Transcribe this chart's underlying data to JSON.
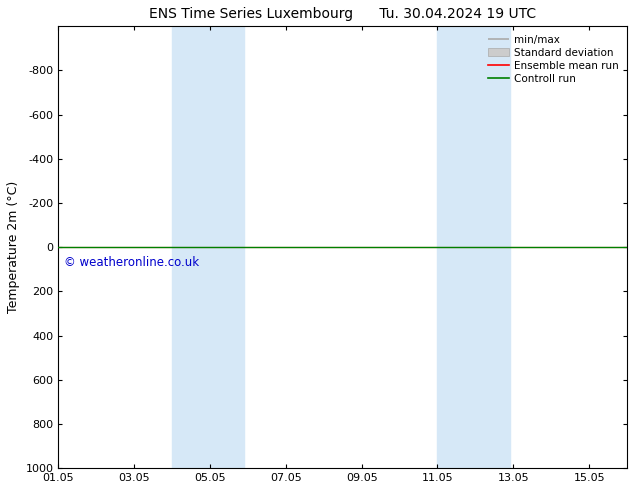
{
  "title": "ENS Time Series Luxembourg      Tu. 30.04.2024 19 UTC",
  "ylabel": "Temperature 2m (°C)",
  "xtick_labels": [
    "01.05",
    "03.05",
    "05.05",
    "07.05",
    "09.05",
    "11.05",
    "13.05",
    "15.05"
  ],
  "xtick_positions": [
    1,
    3,
    5,
    7,
    9,
    11,
    13,
    15
  ],
  "ylim_top": -1000,
  "ylim_bottom": 1000,
  "ytick_positions": [
    -800,
    -600,
    -400,
    -200,
    0,
    200,
    400,
    600,
    800,
    1000
  ],
  "ytick_labels": [
    "-800",
    "-600",
    "-400",
    "-200",
    "0",
    "200",
    "400",
    "600",
    "800",
    "1000"
  ],
  "xlim": [
    1,
    16
  ],
  "shaded_bands": [
    {
      "x_start": 4.0,
      "x_end": 5.9
    },
    {
      "x_start": 11.0,
      "x_end": 12.9
    }
  ],
  "shaded_color": "#d6e8f7",
  "line_y": 0,
  "control_run_color": "#008000",
  "ensemble_mean_color": "#ff0000",
  "minmax_color": "#aaaaaa",
  "stddev_color": "#cccccc",
  "watermark": "© weatheronline.co.uk",
  "watermark_color": "#0000cc",
  "background_color": "#ffffff",
  "legend_labels": [
    "min/max",
    "Standard deviation",
    "Ensemble mean run",
    "Controll run"
  ],
  "legend_line_colors": [
    "#aaaaaa",
    "#cccccc",
    "#ff0000",
    "#008000"
  ]
}
